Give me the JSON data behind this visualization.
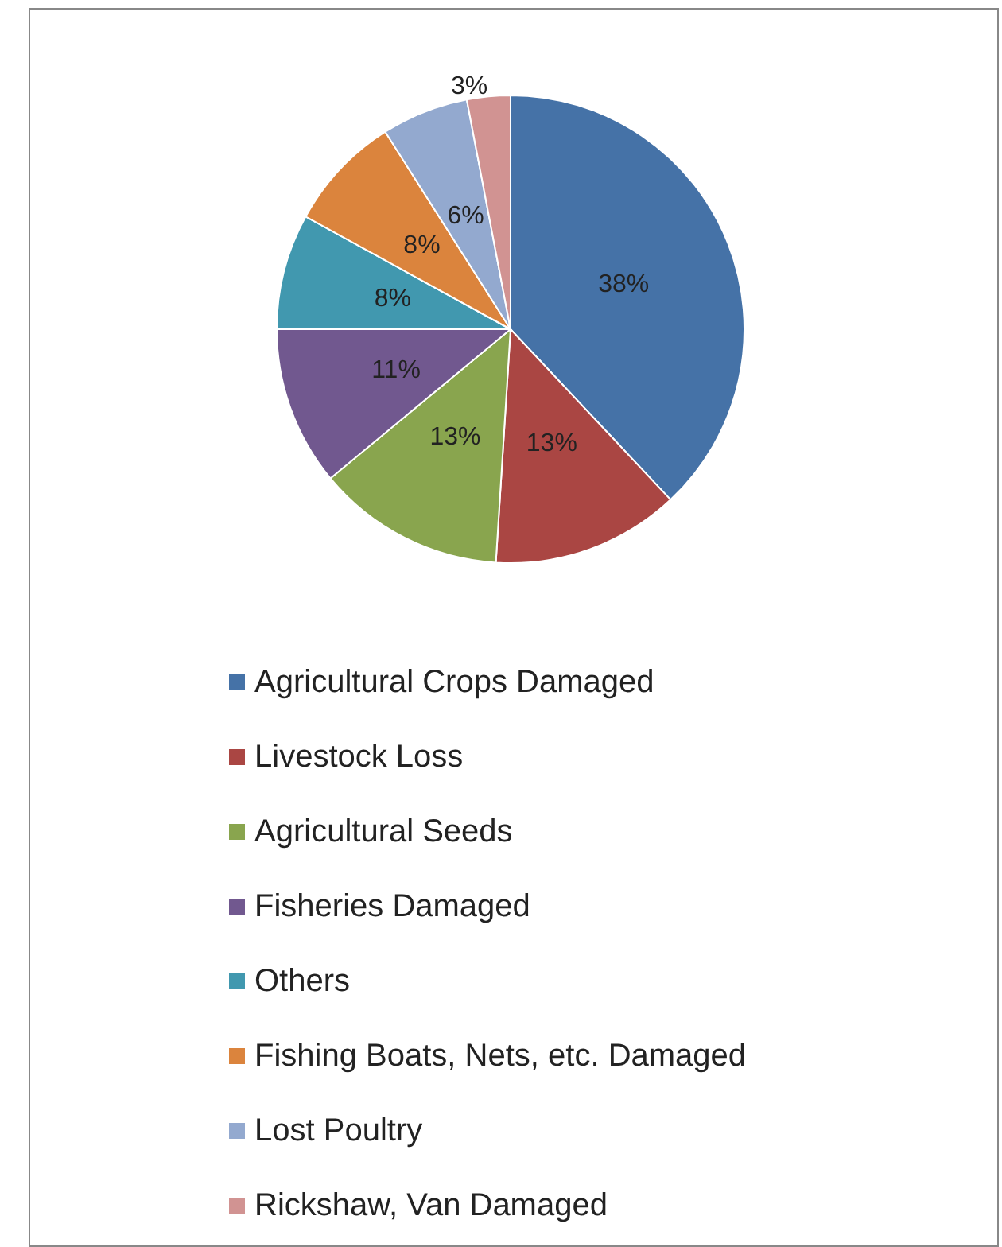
{
  "chart_data": {
    "type": "pie",
    "categories": [
      "Agricultural Crops Damaged",
      "Livestock Loss",
      "Agricultural Seeds",
      "Fisheries Damaged",
      "Others",
      "Fishing Boats, Nets, etc. Damaged",
      "Lost Poultry",
      "Rickshaw, Van Damaged"
    ],
    "values": [
      38,
      13,
      13,
      11,
      8,
      8,
      6,
      3
    ],
    "colors": [
      "#4572a7",
      "#aa4643",
      "#89a54e",
      "#71588f",
      "#4198af",
      "#db843d",
      "#93a9cf",
      "#d19392"
    ],
    "value_labels": [
      "38%",
      "13%",
      "13%",
      "11%",
      "8%",
      "8%",
      "6%",
      "3%"
    ],
    "legend": "bottom"
  }
}
